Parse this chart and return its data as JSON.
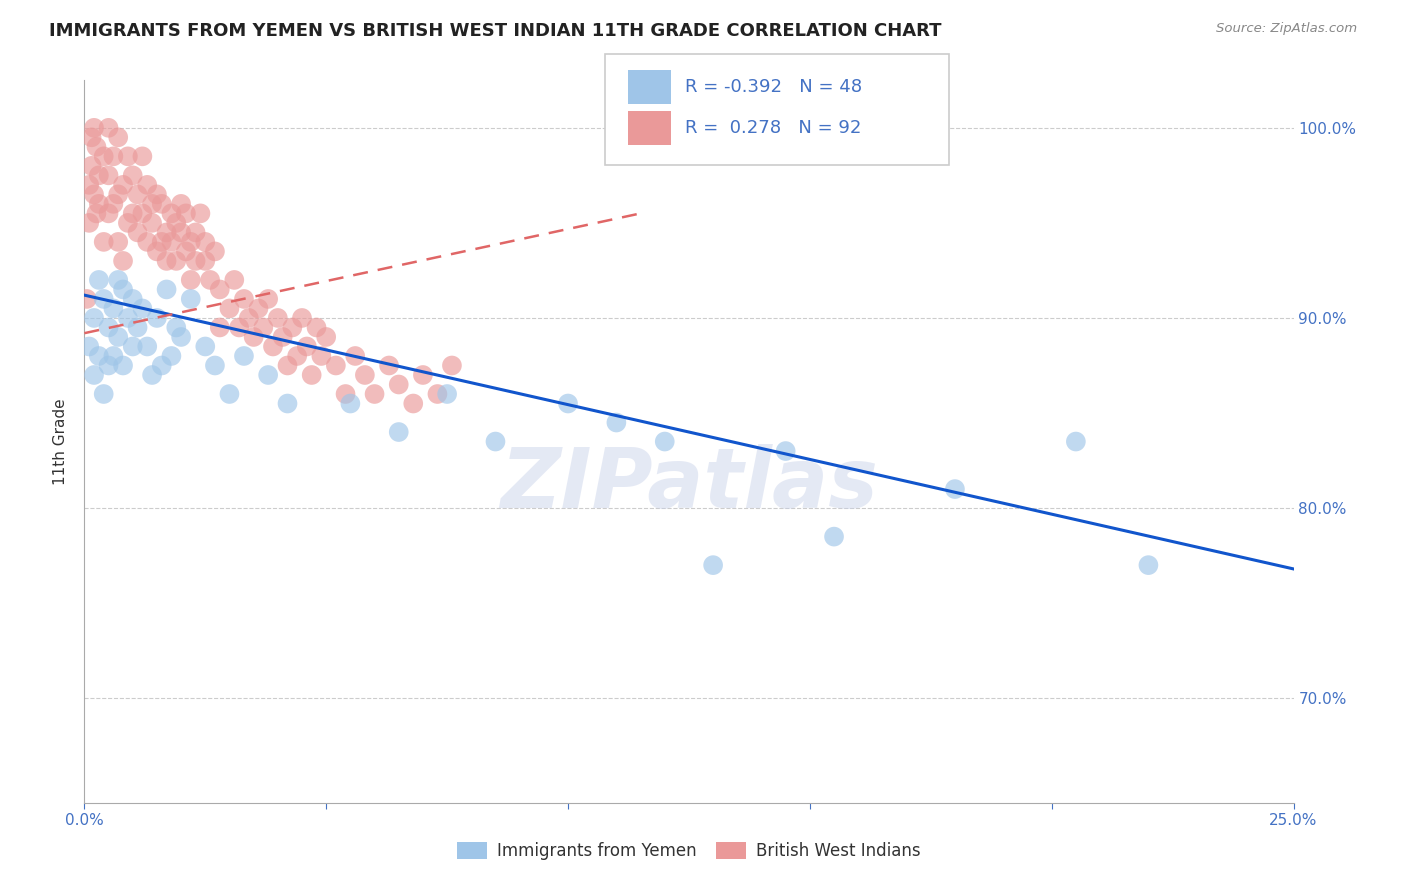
{
  "title": "IMMIGRANTS FROM YEMEN VS BRITISH WEST INDIAN 11TH GRADE CORRELATION CHART",
  "source": "Source: ZipAtlas.com",
  "ylabel": "11th Grade",
  "xlim": [
    0.0,
    0.25
  ],
  "ylim": [
    0.645,
    1.025
  ],
  "yticks": [
    0.7,
    0.8,
    0.9,
    1.0
  ],
  "ytick_labels": [
    "70.0%",
    "80.0%",
    "90.0%",
    "100.0%"
  ],
  "xticks": [
    0.0,
    0.05,
    0.1,
    0.15,
    0.2,
    0.25
  ],
  "xtick_labels": [
    "0.0%",
    "",
    "",
    "",
    "",
    "25.0%"
  ],
  "blue_color": "#9fc5e8",
  "pink_color": "#ea9999",
  "trend_blue_color": "#1155cc",
  "trend_pink_color": "#e06666",
  "r_blue": -0.392,
  "n_blue": 48,
  "r_pink": 0.278,
  "n_pink": 92,
  "legend_label_blue": "Immigrants from Yemen",
  "legend_label_pink": "British West Indians",
  "watermark": "ZIPatlas",
  "blue_trend_x": [
    0.0,
    0.25
  ],
  "blue_trend_y": [
    0.912,
    0.768
  ],
  "pink_trend_x": [
    0.0,
    0.115
  ],
  "pink_trend_y": [
    0.892,
    0.955
  ],
  "blue_scatter_x": [
    0.001,
    0.002,
    0.002,
    0.003,
    0.003,
    0.004,
    0.004,
    0.005,
    0.005,
    0.006,
    0.006,
    0.007,
    0.007,
    0.008,
    0.008,
    0.009,
    0.01,
    0.01,
    0.011,
    0.012,
    0.013,
    0.014,
    0.015,
    0.016,
    0.017,
    0.018,
    0.019,
    0.02,
    0.022,
    0.025,
    0.027,
    0.03,
    0.033,
    0.038,
    0.042,
    0.055,
    0.065,
    0.075,
    0.085,
    0.1,
    0.11,
    0.12,
    0.13,
    0.145,
    0.155,
    0.18,
    0.205,
    0.22
  ],
  "blue_scatter_y": [
    0.885,
    0.9,
    0.87,
    0.92,
    0.88,
    0.91,
    0.86,
    0.895,
    0.875,
    0.905,
    0.88,
    0.92,
    0.89,
    0.915,
    0.875,
    0.9,
    0.885,
    0.91,
    0.895,
    0.905,
    0.885,
    0.87,
    0.9,
    0.875,
    0.915,
    0.88,
    0.895,
    0.89,
    0.91,
    0.885,
    0.875,
    0.86,
    0.88,
    0.87,
    0.855,
    0.855,
    0.84,
    0.86,
    0.835,
    0.855,
    0.845,
    0.835,
    0.77,
    0.83,
    0.785,
    0.81,
    0.835,
    0.77
  ],
  "pink_scatter_x": [
    0.0005,
    0.001,
    0.001,
    0.0015,
    0.0015,
    0.002,
    0.002,
    0.0025,
    0.0025,
    0.003,
    0.003,
    0.004,
    0.004,
    0.005,
    0.005,
    0.005,
    0.006,
    0.006,
    0.007,
    0.007,
    0.007,
    0.008,
    0.008,
    0.009,
    0.009,
    0.01,
    0.01,
    0.011,
    0.011,
    0.012,
    0.012,
    0.013,
    0.013,
    0.014,
    0.014,
    0.015,
    0.015,
    0.016,
    0.016,
    0.017,
    0.017,
    0.018,
    0.018,
    0.019,
    0.019,
    0.02,
    0.02,
    0.021,
    0.021,
    0.022,
    0.022,
    0.023,
    0.023,
    0.024,
    0.025,
    0.025,
    0.026,
    0.027,
    0.028,
    0.028,
    0.03,
    0.031,
    0.032,
    0.033,
    0.034,
    0.035,
    0.036,
    0.037,
    0.038,
    0.039,
    0.04,
    0.041,
    0.042,
    0.043,
    0.044,
    0.045,
    0.046,
    0.047,
    0.048,
    0.049,
    0.05,
    0.052,
    0.054,
    0.056,
    0.058,
    0.06,
    0.063,
    0.065,
    0.068,
    0.07,
    0.073,
    0.076
  ],
  "pink_scatter_y": [
    0.91,
    0.95,
    0.97,
    0.98,
    0.995,
    1.0,
    0.965,
    0.99,
    0.955,
    0.975,
    0.96,
    0.94,
    0.985,
    0.955,
    0.975,
    1.0,
    0.96,
    0.985,
    0.94,
    0.965,
    0.995,
    0.93,
    0.97,
    0.95,
    0.985,
    0.955,
    0.975,
    0.945,
    0.965,
    0.985,
    0.955,
    0.94,
    0.97,
    0.95,
    0.96,
    0.935,
    0.965,
    0.94,
    0.96,
    0.945,
    0.93,
    0.955,
    0.94,
    0.95,
    0.93,
    0.945,
    0.96,
    0.935,
    0.955,
    0.94,
    0.92,
    0.945,
    0.93,
    0.955,
    0.93,
    0.94,
    0.92,
    0.935,
    0.915,
    0.895,
    0.905,
    0.92,
    0.895,
    0.91,
    0.9,
    0.89,
    0.905,
    0.895,
    0.91,
    0.885,
    0.9,
    0.89,
    0.875,
    0.895,
    0.88,
    0.9,
    0.885,
    0.87,
    0.895,
    0.88,
    0.89,
    0.875,
    0.86,
    0.88,
    0.87,
    0.86,
    0.875,
    0.865,
    0.855,
    0.87,
    0.86,
    0.875
  ]
}
